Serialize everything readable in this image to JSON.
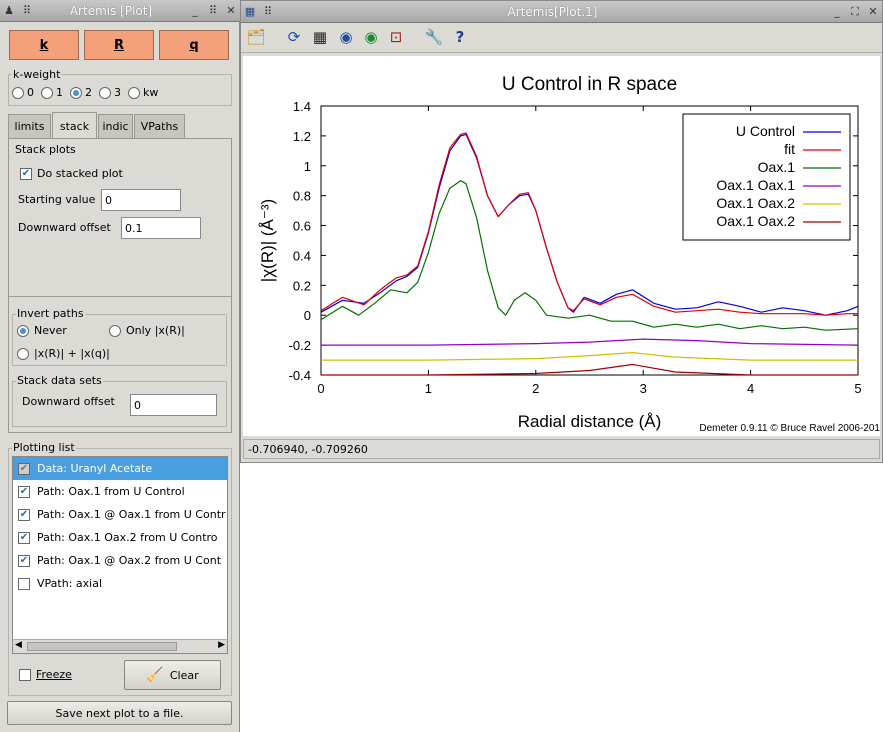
{
  "left_window": {
    "title": "Artemis [Plot]",
    "space_buttons": [
      "k",
      "R",
      "q"
    ],
    "kweight": {
      "label": "k-weight",
      "options": [
        "0",
        "1",
        "2",
        "3",
        "kw"
      ],
      "selected": "2"
    },
    "tabs": [
      "limits",
      "stack",
      "indic",
      "VPaths"
    ],
    "active_tab": "stack",
    "stack": {
      "group_label": "Stack plots",
      "do_stacked": "Do stacked plot",
      "do_stacked_checked": true,
      "starting_label": "Starting value",
      "starting_value": "0",
      "downward_label": "Downward offset",
      "downward_value": "0.1"
    },
    "invert": {
      "label": "Invert paths",
      "never": "Never",
      "only": "Only |x(R)|",
      "both": "|x(R)| + |x(q)|",
      "selected": "Never"
    },
    "stackdata": {
      "label": "Stack data sets",
      "downward_label": "Downward offset",
      "downward_value": "0"
    },
    "plotting_list": {
      "label": "Plotting list",
      "items": [
        {
          "text": "Data: Uranyl Acetate",
          "checked": true,
          "selected": true
        },
        {
          "text": "Path:  Oax.1  from U Control",
          "checked": true
        },
        {
          "text": "Path:  Oax.1 @ Oax.1  from U Contr",
          "checked": true
        },
        {
          "text": "Path:  Oax.1 Oax.2  from U Contro",
          "checked": true
        },
        {
          "text": "Path:  Oax.1 @ Oax.2  from U Cont",
          "checked": true
        },
        {
          "text": "VPath: axial",
          "checked": false
        }
      ]
    },
    "freeze_label": "Freeze",
    "clear_label": "Clear",
    "save_label": "Save next plot to a file."
  },
  "right_window": {
    "title": "Artemis[Plot.1]",
    "status": "-0.706940, -0.709260"
  },
  "chart_data": {
    "type": "line",
    "title": "U Control in R space",
    "xlabel": "Radial distance    (Å)",
    "ylabel": "|χ(R)|    (Å⁻³)",
    "xlim": [
      0,
      5
    ],
    "ylim": [
      -0.4,
      1.4
    ],
    "xticks": [
      "0",
      "1",
      "2",
      "3",
      "4",
      "5"
    ],
    "yticks": [
      "-0.4",
      "-0.2",
      "0",
      "0.2",
      "0.4",
      "0.6",
      "0.8",
      "1",
      "1.2",
      "1.4"
    ],
    "credit": "Demeter 0.9.11 © Bruce Ravel 2006-201",
    "legend_position": "top-right",
    "series": [
      {
        "name": "U Control",
        "color": "#0000e0",
        "x": [
          0,
          0.2,
          0.4,
          0.55,
          0.7,
          0.8,
          0.9,
          1.0,
          1.1,
          1.2,
          1.3,
          1.35,
          1.45,
          1.55,
          1.65,
          1.75,
          1.85,
          1.93,
          2.0,
          2.1,
          2.2,
          2.3,
          2.35,
          2.45,
          2.6,
          2.75,
          2.9,
          3.1,
          3.3,
          3.5,
          3.7,
          3.9,
          4.1,
          4.3,
          4.5,
          4.7,
          4.9,
          5.0
        ],
        "y": [
          0.02,
          0.1,
          0.08,
          0.15,
          0.23,
          0.26,
          0.32,
          0.55,
          0.85,
          1.1,
          1.2,
          1.21,
          1.05,
          0.8,
          0.66,
          0.74,
          0.8,
          0.81,
          0.7,
          0.45,
          0.22,
          0.05,
          0.02,
          0.12,
          0.08,
          0.14,
          0.17,
          0.08,
          0.04,
          0.05,
          0.09,
          0.06,
          0.02,
          0.05,
          0.03,
          0.0,
          0.03,
          0.06
        ]
      },
      {
        "name": "fit",
        "color": "#e00000",
        "x": [
          0,
          0.2,
          0.4,
          0.55,
          0.7,
          0.8,
          0.9,
          1.0,
          1.1,
          1.2,
          1.3,
          1.35,
          1.45,
          1.55,
          1.65,
          1.75,
          1.85,
          1.93,
          2.0,
          2.1,
          2.2,
          2.3,
          2.35,
          2.45,
          2.6,
          2.75,
          2.9,
          3.1,
          3.3,
          3.5,
          3.7,
          3.9,
          4.1,
          4.3,
          4.5,
          4.7,
          4.9,
          5.0
        ],
        "y": [
          0.03,
          0.12,
          0.07,
          0.17,
          0.25,
          0.27,
          0.33,
          0.56,
          0.87,
          1.12,
          1.21,
          1.22,
          1.06,
          0.8,
          0.66,
          0.74,
          0.81,
          0.82,
          0.7,
          0.45,
          0.22,
          0.05,
          0.03,
          0.11,
          0.07,
          0.12,
          0.14,
          0.06,
          0.02,
          0.03,
          0.04,
          0.02,
          0.01,
          0.01,
          0.01,
          0.0,
          0.01,
          0.01
        ]
      },
      {
        "name": "Oax.1",
        "color": "#007000",
        "x": [
          0,
          0.2,
          0.35,
          0.5,
          0.65,
          0.8,
          0.9,
          1.0,
          1.1,
          1.2,
          1.3,
          1.35,
          1.45,
          1.55,
          1.65,
          1.72,
          1.8,
          1.9,
          2.0,
          2.1,
          2.3,
          2.5,
          2.7,
          2.9,
          3.1,
          3.3,
          3.5,
          3.7,
          3.9,
          4.1,
          4.3,
          4.5,
          4.7,
          5.0
        ],
        "y": [
          -0.03,
          0.06,
          0.0,
          0.08,
          0.17,
          0.15,
          0.22,
          0.42,
          0.68,
          0.85,
          0.9,
          0.88,
          0.65,
          0.3,
          0.05,
          0.0,
          0.1,
          0.15,
          0.1,
          0.0,
          -0.02,
          0.0,
          -0.04,
          -0.04,
          -0.08,
          -0.06,
          -0.08,
          -0.06,
          -0.09,
          -0.07,
          -0.09,
          -0.08,
          -0.1,
          -0.09
        ]
      },
      {
        "name": "Oax.1 Oax.1",
        "color": "#9000d0",
        "x": [
          0,
          1,
          2,
          2.5,
          3,
          3.5,
          4,
          5
        ],
        "y": [
          -0.2,
          -0.2,
          -0.19,
          -0.18,
          -0.16,
          -0.17,
          -0.19,
          -0.2
        ]
      },
      {
        "name": "Oax.1 Oax.2",
        "color": "#d0c000",
        "x": [
          0,
          1,
          2,
          2.5,
          2.9,
          3.3,
          4,
          5
        ],
        "y": [
          -0.3,
          -0.3,
          -0.29,
          -0.27,
          -0.25,
          -0.28,
          -0.3,
          -0.3
        ]
      },
      {
        "name": "Oax.1 Oax.2",
        "color": "#a00000",
        "x": [
          0,
          1,
          2,
          2.5,
          2.9,
          3.3,
          4,
          5
        ],
        "y": [
          -0.4,
          -0.4,
          -0.39,
          -0.37,
          -0.33,
          -0.38,
          -0.4,
          -0.4
        ]
      }
    ]
  }
}
